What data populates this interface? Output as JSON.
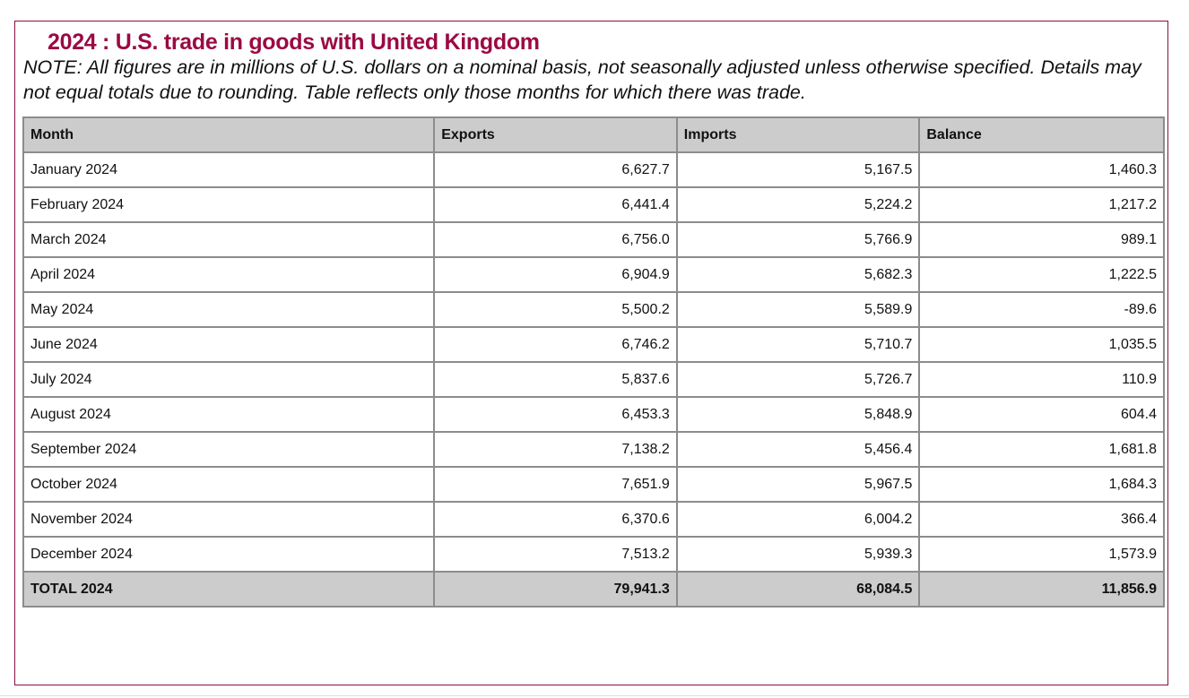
{
  "title": "2024 : U.S. trade in goods with United Kingdom",
  "note": "NOTE: All figures are in millions of U.S. dollars on a nominal basis, not seasonally adjusted unless otherwise specified. Details may not equal totals due to rounding. Table reflects only those months for which there was trade.",
  "colors": {
    "accent": "#9b0a43",
    "header_bg": "#cccccc",
    "border": "#8c8c8c"
  },
  "table": {
    "headers": [
      "Month",
      "Exports",
      "Imports",
      "Balance"
    ],
    "rows": [
      [
        "January 2024",
        "6,627.7",
        "5,167.5",
        "1,460.3"
      ],
      [
        "February 2024",
        "6,441.4",
        "5,224.2",
        "1,217.2"
      ],
      [
        "March 2024",
        "6,756.0",
        "5,766.9",
        "989.1"
      ],
      [
        "April 2024",
        "6,904.9",
        "5,682.3",
        "1,222.5"
      ],
      [
        "May 2024",
        "5,500.2",
        "5,589.9",
        "-89.6"
      ],
      [
        "June 2024",
        "6,746.2",
        "5,710.7",
        "1,035.5"
      ],
      [
        "July 2024",
        "5,837.6",
        "5,726.7",
        "110.9"
      ],
      [
        "August 2024",
        "6,453.3",
        "5,848.9",
        "604.4"
      ],
      [
        "September 2024",
        "7,138.2",
        "5,456.4",
        "1,681.8"
      ],
      [
        "October 2024",
        "7,651.9",
        "5,967.5",
        "1,684.3"
      ],
      [
        "November 2024",
        "6,370.6",
        "6,004.2",
        "366.4"
      ],
      [
        "December 2024",
        "7,513.2",
        "5,939.3",
        "1,573.9"
      ]
    ],
    "total": [
      "TOTAL 2024",
      "79,941.3",
      "68,084.5",
      "11,856.9"
    ]
  }
}
